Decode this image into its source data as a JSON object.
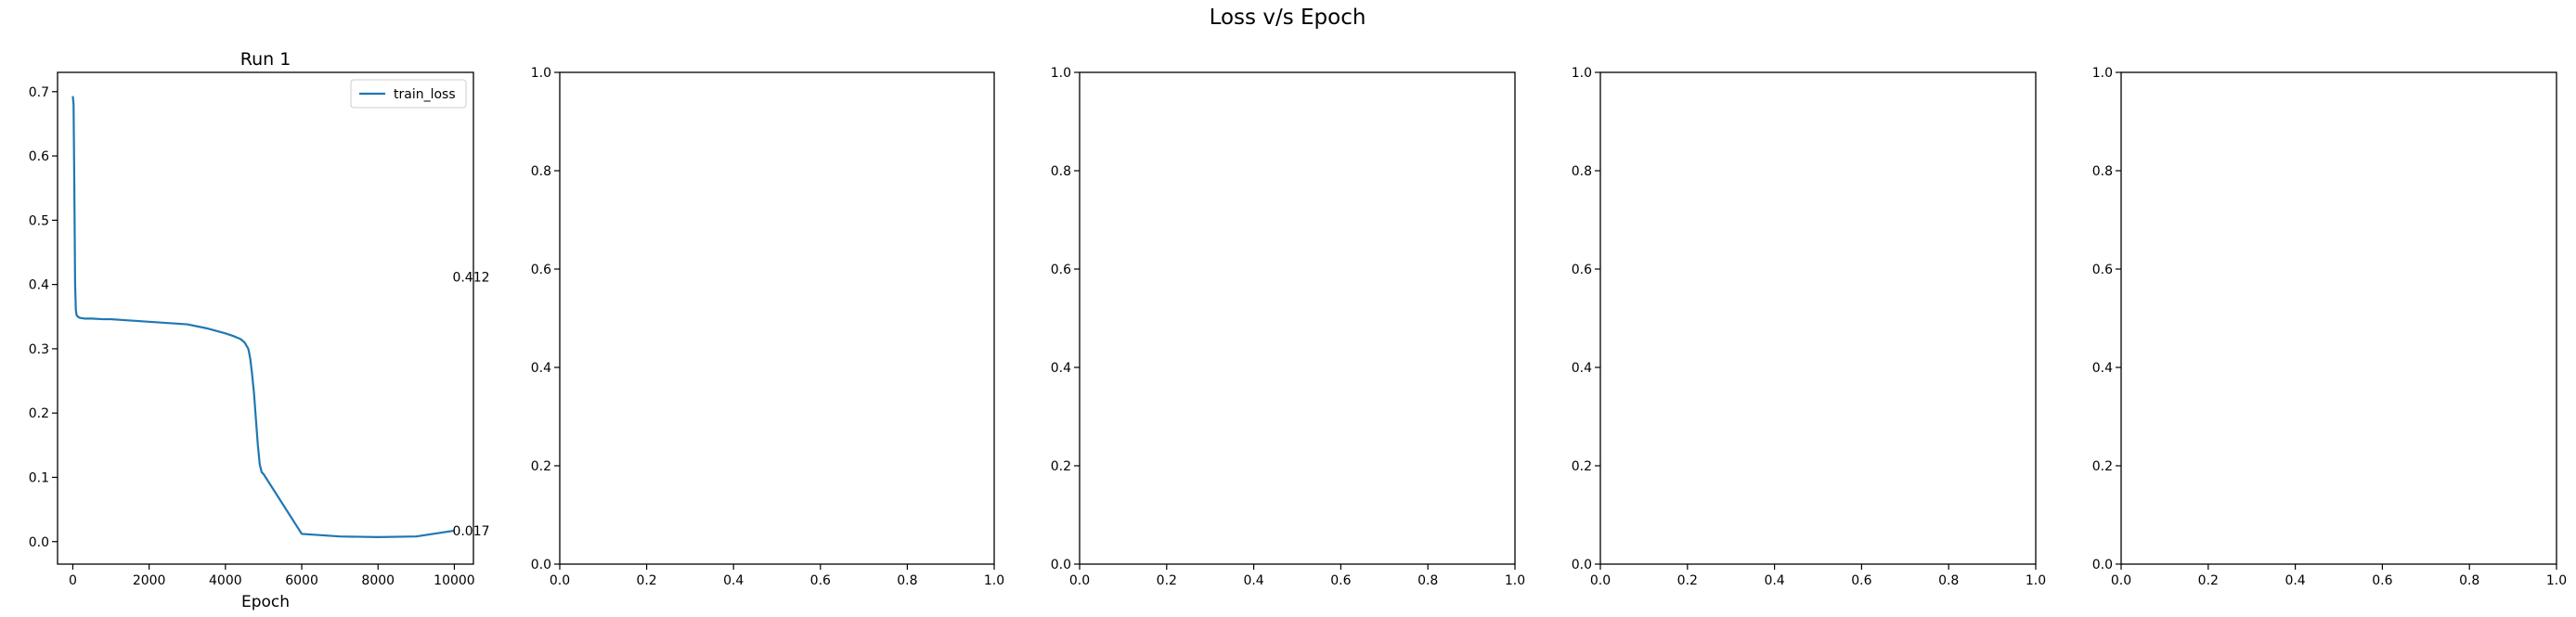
{
  "figure": {
    "suptitle": "Loss v/s Epoch"
  },
  "chart_data": [
    {
      "type": "line",
      "title": "Run 1",
      "xlabel": "Epoch",
      "ylabel": "",
      "xlim": [
        -400,
        10500
      ],
      "ylim": [
        -0.035,
        0.73
      ],
      "xticks": [
        "0",
        "2000",
        "4000",
        "6000",
        "8000",
        "10000"
      ],
      "xtick_values": [
        0,
        2000,
        4000,
        6000,
        8000,
        10000
      ],
      "yticks": [
        "0.0",
        "0.1",
        "0.2",
        "0.3",
        "0.4",
        "0.5",
        "0.6",
        "0.7"
      ],
      "ytick_values": [
        0.0,
        0.1,
        0.2,
        0.3,
        0.4,
        0.5,
        0.6,
        0.7
      ],
      "legend": {
        "location": "upper right",
        "entries": [
          "train_loss"
        ]
      },
      "series": [
        {
          "name": "train_loss",
          "color": "#1f77b4",
          "x": [
            0,
            20,
            40,
            60,
            80,
            100,
            150,
            200,
            300,
            500,
            800,
            1000,
            1500,
            2000,
            2500,
            3000,
            3500,
            4000,
            4200,
            4400,
            4500,
            4600,
            4650,
            4700,
            4750,
            4800,
            4850,
            4900,
            4950,
            5000,
            6000,
            7000,
            8000,
            9000,
            10000
          ],
          "y": [
            0.693,
            0.68,
            0.55,
            0.4,
            0.36,
            0.352,
            0.349,
            0.348,
            0.347,
            0.347,
            0.346,
            0.346,
            0.344,
            0.342,
            0.34,
            0.338,
            0.332,
            0.324,
            0.32,
            0.315,
            0.31,
            0.3,
            0.285,
            0.26,
            0.23,
            0.19,
            0.15,
            0.12,
            0.108,
            0.105,
            0.012,
            0.008,
            0.007,
            0.008,
            0.017
          ]
        }
      ],
      "annotations": [
        {
          "text": "0.412",
          "x": 10000,
          "y": 0.412
        },
        {
          "text": "0.017",
          "x": 10000,
          "y": 0.017
        }
      ]
    },
    {
      "type": "line",
      "title": "",
      "xlim": [
        0,
        1
      ],
      "ylim": [
        0,
        1
      ],
      "xticks": [
        "0.0",
        "0.2",
        "0.4",
        "0.6",
        "0.8",
        "1.0"
      ],
      "xtick_values": [
        0,
        0.2,
        0.4,
        0.6,
        0.8,
        1.0
      ],
      "yticks": [
        "0.0",
        "0.2",
        "0.4",
        "0.6",
        "0.8",
        "1.0"
      ],
      "ytick_values": [
        0,
        0.2,
        0.4,
        0.6,
        0.8,
        1.0
      ],
      "series": []
    },
    {
      "type": "line",
      "title": "",
      "xlim": [
        0,
        1
      ],
      "ylim": [
        0,
        1
      ],
      "xticks": [
        "0.0",
        "0.2",
        "0.4",
        "0.6",
        "0.8",
        "1.0"
      ],
      "xtick_values": [
        0,
        0.2,
        0.4,
        0.6,
        0.8,
        1.0
      ],
      "yticks": [
        "0.0",
        "0.2",
        "0.4",
        "0.6",
        "0.8",
        "1.0"
      ],
      "ytick_values": [
        0,
        0.2,
        0.4,
        0.6,
        0.8,
        1.0
      ],
      "series": []
    },
    {
      "type": "line",
      "title": "",
      "xlim": [
        0,
        1
      ],
      "ylim": [
        0,
        1
      ],
      "xticks": [
        "0.0",
        "0.2",
        "0.4",
        "0.6",
        "0.8",
        "1.0"
      ],
      "xtick_values": [
        0,
        0.2,
        0.4,
        0.6,
        0.8,
        1.0
      ],
      "yticks": [
        "0.0",
        "0.2",
        "0.4",
        "0.6",
        "0.8",
        "1.0"
      ],
      "ytick_values": [
        0,
        0.2,
        0.4,
        0.6,
        0.8,
        1.0
      ],
      "series": []
    },
    {
      "type": "line",
      "title": "",
      "xlim": [
        0,
        1
      ],
      "ylim": [
        0,
        1
      ],
      "xticks": [
        "0.0",
        "0.2",
        "0.4",
        "0.6",
        "0.8",
        "1.0"
      ],
      "xtick_values": [
        0,
        0.2,
        0.4,
        0.6,
        0.8,
        1.0
      ],
      "yticks": [
        "0.0",
        "0.2",
        "0.4",
        "0.6",
        "0.8",
        "1.0"
      ],
      "ytick_values": [
        0,
        0.2,
        0.4,
        0.6,
        0.8,
        1.0
      ],
      "series": []
    }
  ]
}
